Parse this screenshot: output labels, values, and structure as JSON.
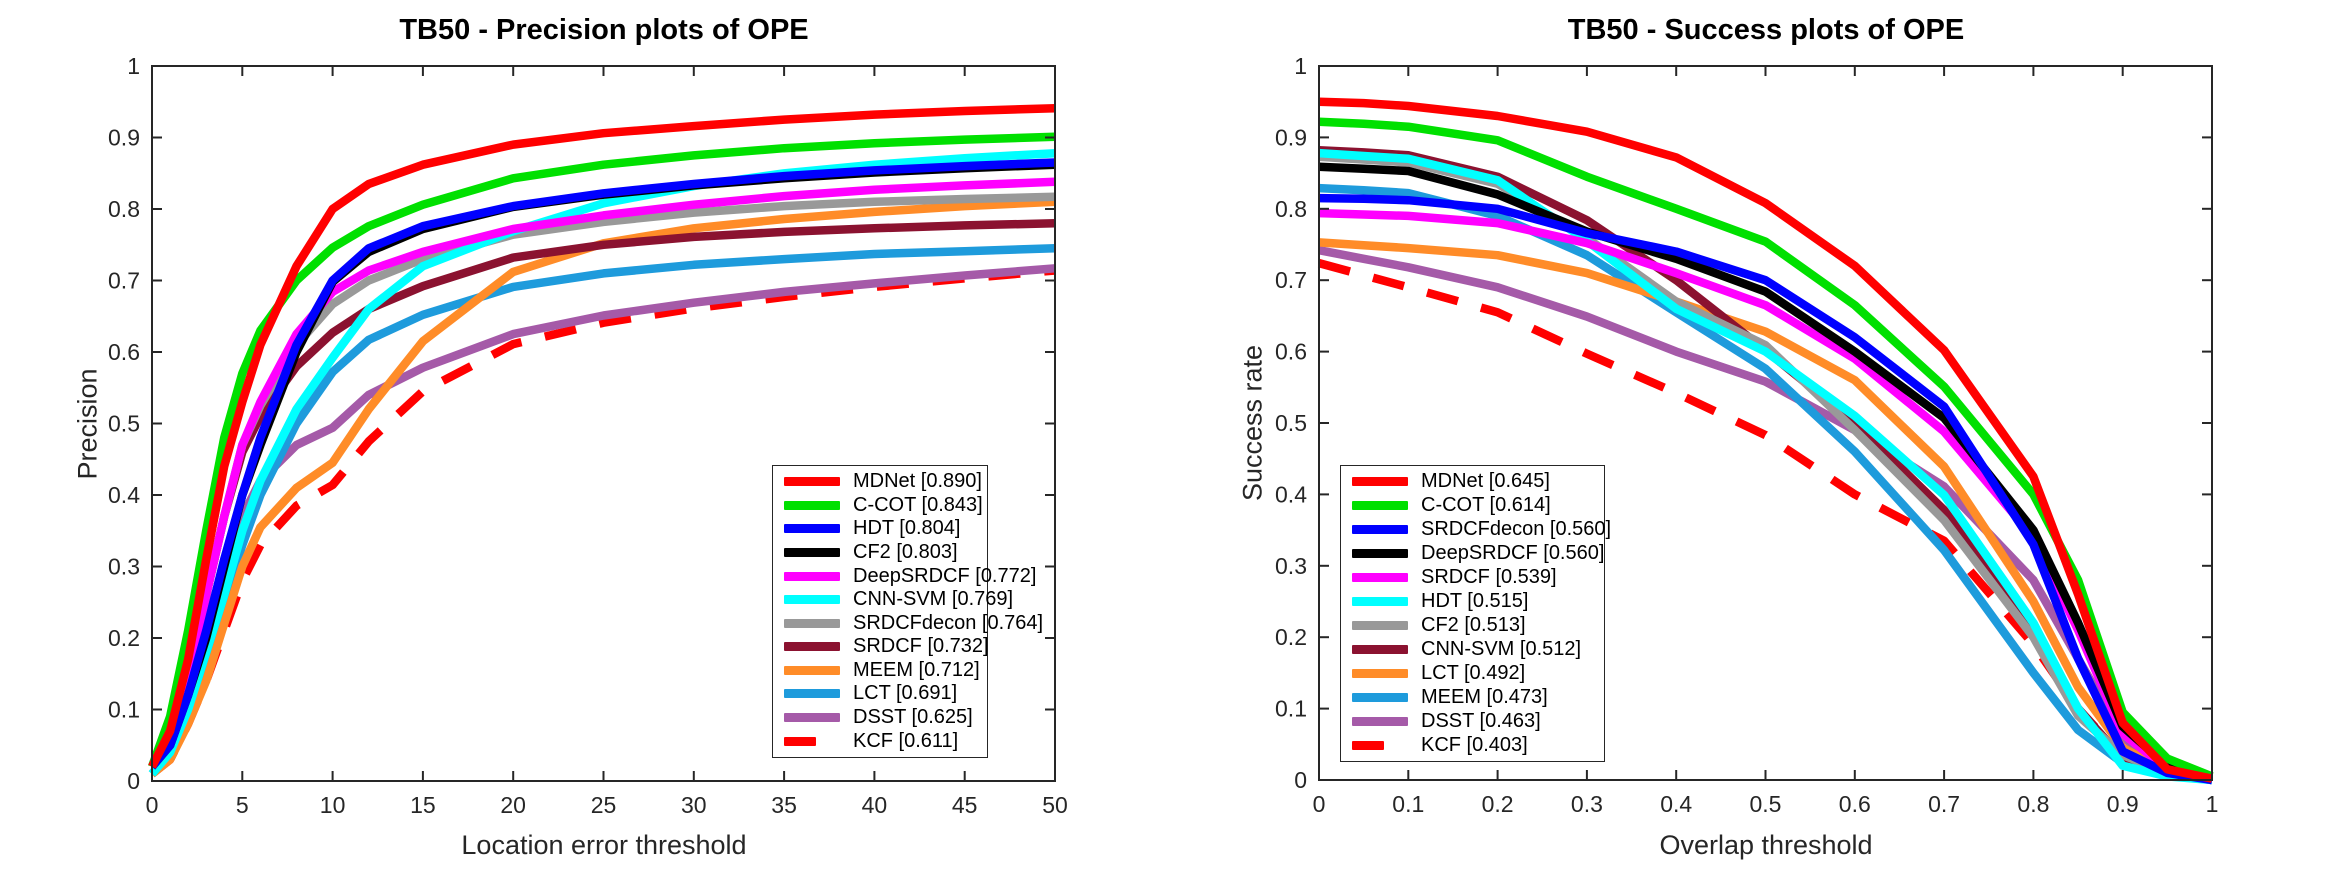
{
  "figure": {
    "background": "#FFFFFF",
    "axis_color": "#262626",
    "tick_label_color": "#262626"
  },
  "chart_data": [
    {
      "type": "line",
      "title": "TB50 - Precision plots of OPE",
      "xlabel": "Location error threshold",
      "ylabel": "Precision",
      "xlim": [
        0,
        50
      ],
      "ylim": [
        0,
        1
      ],
      "grid": false,
      "legend_position": "inside lower-right area",
      "xtick_labels": [
        "0",
        "5",
        "10",
        "15",
        "20",
        "25",
        "30",
        "35",
        "40",
        "45",
        "50"
      ],
      "xticks": [
        0,
        5,
        10,
        15,
        20,
        25,
        30,
        35,
        40,
        45,
        50
      ],
      "ytick_labels": [
        "0",
        "0.1",
        "0.2",
        "0.3",
        "0.4",
        "0.5",
        "0.6",
        "0.7",
        "0.8",
        "0.9",
        "1"
      ],
      "yticks": [
        0,
        0.1,
        0.2,
        0.3,
        0.4,
        0.5,
        0.6,
        0.7,
        0.8,
        0.9,
        1
      ],
      "x": [
        0,
        1,
        2,
        3,
        4,
        5,
        6,
        8,
        10,
        12,
        15,
        20,
        25,
        30,
        35,
        40,
        45,
        50
      ],
      "series": [
        {
          "name": "MDNet",
          "score": "0.890",
          "label": "MDNet [0.890]",
          "color": "#FF0000",
          "dash": false,
          "values": [
            0.02,
            0.07,
            0.17,
            0.31,
            0.44,
            0.53,
            0.61,
            0.72,
            0.8,
            0.835,
            0.862,
            0.89,
            0.906,
            0.916,
            0.925,
            0.932,
            0.937,
            0.941
          ]
        },
        {
          "name": "C-COT",
          "score": "0.843",
          "label": "C-COT [0.843]",
          "color": "#00E000",
          "dash": false,
          "values": [
            0.02,
            0.09,
            0.21,
            0.35,
            0.48,
            0.57,
            0.63,
            0.7,
            0.746,
            0.776,
            0.806,
            0.843,
            0.862,
            0.875,
            0.885,
            0.892,
            0.897,
            0.901
          ]
        },
        {
          "name": "HDT",
          "score": "0.804",
          "label": "HDT [0.804]",
          "color": "#0000FF",
          "dash": false,
          "values": [
            0.02,
            0.05,
            0.12,
            0.21,
            0.31,
            0.4,
            0.48,
            0.61,
            0.7,
            0.745,
            0.776,
            0.804,
            0.822,
            0.835,
            0.846,
            0.854,
            0.86,
            0.865
          ]
        },
        {
          "name": "CF2",
          "score": "0.803",
          "label": "CF2 [0.803]",
          "color": "#000000",
          "dash": false,
          "values": [
            0.02,
            0.05,
            0.12,
            0.2,
            0.3,
            0.4,
            0.47,
            0.6,
            0.698,
            0.74,
            0.772,
            0.803,
            0.82,
            0.833,
            0.843,
            0.851,
            0.857,
            0.862
          ]
        },
        {
          "name": "DeepSRDCF",
          "score": "0.772",
          "label": "DeepSRDCF [0.772]",
          "color": "#FF00FF",
          "dash": false,
          "values": [
            0.02,
            0.06,
            0.15,
            0.26,
            0.37,
            0.47,
            0.53,
            0.625,
            0.684,
            0.714,
            0.74,
            0.772,
            0.791,
            0.806,
            0.818,
            0.827,
            0.833,
            0.838
          ]
        },
        {
          "name": "CNN-SVM",
          "score": "0.769",
          "label": "CNN-SVM [0.769]",
          "color": "#00FFFF",
          "dash": false,
          "values": [
            0.01,
            0.04,
            0.1,
            0.18,
            0.26,
            0.35,
            0.42,
            0.52,
            0.592,
            0.66,
            0.72,
            0.769,
            0.808,
            0.832,
            0.85,
            0.862,
            0.871,
            0.878
          ]
        },
        {
          "name": "SRDCFdecon",
          "score": "0.764",
          "label": "SRDCFdecon [0.764]",
          "color": "#999999",
          "dash": false,
          "values": [
            0.02,
            0.06,
            0.15,
            0.26,
            0.37,
            0.47,
            0.525,
            0.61,
            0.667,
            0.7,
            0.73,
            0.764,
            0.782,
            0.795,
            0.804,
            0.81,
            0.814,
            0.817
          ]
        },
        {
          "name": "SRDCF",
          "score": "0.732",
          "label": "SRDCF [0.732]",
          "color": "#8B1230",
          "dash": false,
          "values": [
            0.02,
            0.06,
            0.15,
            0.26,
            0.37,
            0.46,
            0.51,
            0.58,
            0.627,
            0.66,
            0.692,
            0.732,
            0.75,
            0.761,
            0.768,
            0.773,
            0.777,
            0.78
          ]
        },
        {
          "name": "MEEM",
          "score": "0.712",
          "label": "MEEM [0.712]",
          "color": "#FF8C28",
          "dash": false,
          "values": [
            0.01,
            0.03,
            0.08,
            0.14,
            0.22,
            0.3,
            0.355,
            0.41,
            0.445,
            0.52,
            0.615,
            0.712,
            0.752,
            0.773,
            0.786,
            0.796,
            0.804,
            0.81
          ]
        },
        {
          "name": "LCT",
          "score": "0.691",
          "label": "LCT [0.691]",
          "color": "#1E9BDC",
          "dash": false,
          "values": [
            0.01,
            0.04,
            0.1,
            0.17,
            0.25,
            0.33,
            0.4,
            0.5,
            0.572,
            0.617,
            0.652,
            0.691,
            0.71,
            0.722,
            0.73,
            0.737,
            0.741,
            0.745
          ]
        },
        {
          "name": "DSST",
          "score": "0.625",
          "label": "DSST [0.625]",
          "color": "#A55AA8",
          "dash": false,
          "values": [
            0.02,
            0.05,
            0.13,
            0.22,
            0.3,
            0.37,
            0.42,
            0.47,
            0.494,
            0.54,
            0.578,
            0.625,
            0.651,
            0.669,
            0.684,
            0.696,
            0.707,
            0.717
          ]
        },
        {
          "name": "KCF",
          "score": "0.611",
          "label": "KCF [0.611]",
          "color": "#FF0000",
          "dash": true,
          "values": [
            0.01,
            0.03,
            0.08,
            0.14,
            0.21,
            0.28,
            0.33,
            0.385,
            0.414,
            0.475,
            0.545,
            0.611,
            0.641,
            0.661,
            0.677,
            0.691,
            0.703,
            0.714
          ]
        }
      ]
    },
    {
      "type": "line",
      "title": "TB50 - Success plots of OPE",
      "xlabel": "Overlap threshold",
      "ylabel": "Success rate",
      "xlim": [
        0,
        1
      ],
      "ylim": [
        0,
        1
      ],
      "grid": false,
      "legend_position": "inside middle-left area",
      "xtick_labels": [
        "0",
        "0.1",
        "0.2",
        "0.3",
        "0.4",
        "0.5",
        "0.6",
        "0.7",
        "0.8",
        "0.9",
        "1"
      ],
      "xticks": [
        0,
        0.1,
        0.2,
        0.3,
        0.4,
        0.5,
        0.6,
        0.7,
        0.8,
        0.9,
        1
      ],
      "ytick_labels": [
        "0",
        "0.1",
        "0.2",
        "0.3",
        "0.4",
        "0.5",
        "0.6",
        "0.7",
        "0.8",
        "0.9",
        "1"
      ],
      "yticks": [
        0,
        0.1,
        0.2,
        0.3,
        0.4,
        0.5,
        0.6,
        0.7,
        0.8,
        0.9,
        1
      ],
      "x": [
        0,
        0.05,
        0.1,
        0.2,
        0.3,
        0.4,
        0.5,
        0.6,
        0.7,
        0.8,
        0.85,
        0.9,
        0.95,
        1
      ],
      "series": [
        {
          "name": "MDNet",
          "score": "0.645",
          "label": "MDNet [0.645]",
          "color": "#FF0000",
          "dash": false,
          "values": [
            0.95,
            0.948,
            0.944,
            0.93,
            0.908,
            0.872,
            0.808,
            0.72,
            0.602,
            0.425,
            0.26,
            0.08,
            0.015,
            0.002
          ]
        },
        {
          "name": "C-COT",
          "score": "0.614",
          "label": "C-COT [0.614]",
          "color": "#00E000",
          "dash": false,
          "values": [
            0.922,
            0.919,
            0.915,
            0.896,
            0.845,
            0.8,
            0.754,
            0.665,
            0.551,
            0.4,
            0.28,
            0.095,
            0.03,
            0.005
          ]
        },
        {
          "name": "SRDCFdecon",
          "score": "0.560",
          "label": "SRDCFdecon [0.560]",
          "color": "#0000FF",
          "dash": false,
          "values": [
            0.815,
            0.814,
            0.812,
            0.8,
            0.766,
            0.74,
            0.7,
            0.62,
            0.523,
            0.33,
            0.17,
            0.04,
            0.01,
            0.0
          ]
        },
        {
          "name": "DeepSRDCF",
          "score": "0.560",
          "label": "DeepSRDCF [0.560]",
          "color": "#000000",
          "dash": false,
          "values": [
            0.859,
            0.856,
            0.853,
            0.82,
            0.768,
            0.73,
            0.684,
            0.6,
            0.507,
            0.35,
            0.22,
            0.075,
            0.02,
            0.005
          ]
        },
        {
          "name": "SRDCF",
          "score": "0.539",
          "label": "SRDCF [0.539]",
          "color": "#FF00FF",
          "dash": false,
          "values": [
            0.794,
            0.792,
            0.79,
            0.78,
            0.752,
            0.71,
            0.665,
            0.59,
            0.488,
            0.34,
            0.21,
            0.065,
            0.015,
            0.0
          ]
        },
        {
          "name": "HDT",
          "score": "0.515",
          "label": "HDT [0.515]",
          "color": "#00FFFF",
          "dash": false,
          "values": [
            0.878,
            0.874,
            0.87,
            0.84,
            0.755,
            0.66,
            0.6,
            0.51,
            0.399,
            0.22,
            0.1,
            0.02,
            0.005,
            0.0
          ]
        },
        {
          "name": "CF2",
          "score": "0.513",
          "label": "CF2 [0.513]",
          "color": "#999999",
          "dash": false,
          "values": [
            0.873,
            0.869,
            0.865,
            0.835,
            0.759,
            0.67,
            0.609,
            0.49,
            0.364,
            0.2,
            0.09,
            0.035,
            0.01,
            0.0
          ]
        },
        {
          "name": "CNN-SVM",
          "score": "0.512",
          "label": "CNN-SVM [0.512]",
          "color": "#8B1230",
          "dash": false,
          "values": [
            0.882,
            0.879,
            0.875,
            0.845,
            0.784,
            0.7,
            0.602,
            0.5,
            0.378,
            0.21,
            0.1,
            0.03,
            0.01,
            0.0
          ]
        },
        {
          "name": "LCT",
          "score": "0.492",
          "label": "LCT [0.492]",
          "color": "#FF8C28",
          "dash": false,
          "values": [
            0.753,
            0.749,
            0.745,
            0.735,
            0.71,
            0.67,
            0.628,
            0.56,
            0.439,
            0.25,
            0.13,
            0.045,
            0.012,
            0.0
          ]
        },
        {
          "name": "MEEM",
          "score": "0.473",
          "label": "MEEM [0.473]",
          "color": "#1E9BDC",
          "dash": false,
          "values": [
            0.829,
            0.826,
            0.822,
            0.79,
            0.735,
            0.655,
            0.576,
            0.46,
            0.322,
            0.15,
            0.07,
            0.024,
            0.008,
            0.0
          ]
        },
        {
          "name": "DSST",
          "score": "0.463",
          "label": "DSST [0.463]",
          "color": "#A55AA8",
          "dash": false,
          "values": [
            0.742,
            0.73,
            0.718,
            0.69,
            0.649,
            0.6,
            0.558,
            0.49,
            0.411,
            0.28,
            0.17,
            0.06,
            0.015,
            0.005
          ]
        },
        {
          "name": "KCF",
          "score": "0.403",
          "label": "KCF [0.403]",
          "color": "#FF0000",
          "dash": true,
          "values": [
            0.724,
            0.707,
            0.69,
            0.655,
            0.597,
            0.542,
            0.483,
            0.4,
            0.335,
            0.19,
            0.1,
            0.032,
            0.01,
            0.0
          ]
        }
      ]
    }
  ]
}
